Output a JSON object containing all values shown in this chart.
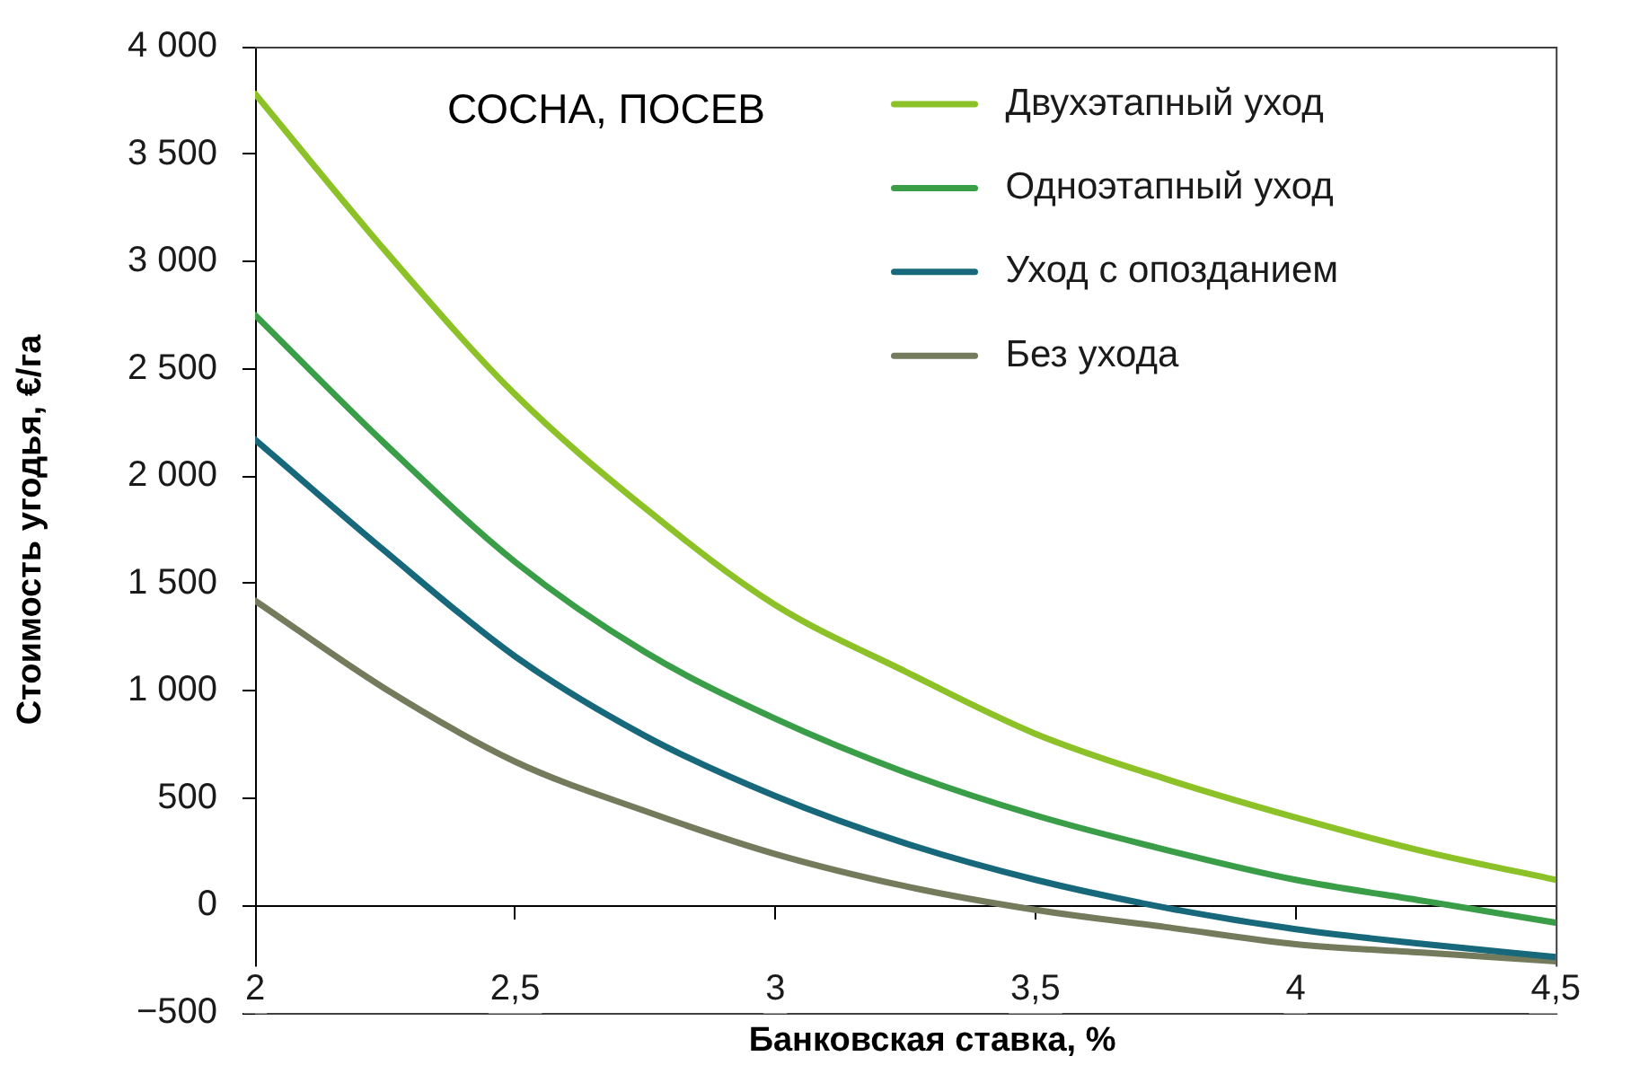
{
  "chart_data": {
    "type": "line",
    "title": "СОСНА, ПОСЕВ",
    "xlabel": "Банковская ставка, %",
    "ylabel": "Стоимость угодья, €/га",
    "x": [
      2,
      2.25,
      2.5,
      2.75,
      3,
      3.25,
      3.5,
      3.75,
      4,
      4.25,
      4.5
    ],
    "series": [
      {
        "name": "Двухэтапный уход",
        "color": "#8cc227",
        "values": [
          3780,
          3050,
          2380,
          1850,
          1400,
          1090,
          800,
          590,
          410,
          250,
          120
        ]
      },
      {
        "name": "Одноэтапный уход",
        "color": "#3a9e48",
        "values": [
          2750,
          2150,
          1600,
          1180,
          870,
          620,
          420,
          260,
          120,
          20,
          -80
        ]
      },
      {
        "name": "Уход с опозданием",
        "color": "#17687a",
        "values": [
          2170,
          1650,
          1160,
          790,
          510,
          290,
          120,
          -10,
          -110,
          -180,
          -240
        ]
      },
      {
        "name": "Без ухода",
        "color": "#737b5c",
        "values": [
          1420,
          1010,
          670,
          440,
          240,
          90,
          -20,
          -100,
          -180,
          -220,
          -260
        ]
      }
    ],
    "xlim": [
      2,
      4.5
    ],
    "xticks": [
      2,
      {
        "value": 2.5,
        "label": "2,5"
      },
      3,
      {
        "value": 3.5,
        "label": "3,5"
      },
      4,
      {
        "value": 4.5,
        "label": "4,5"
      }
    ],
    "ylim": [
      -500,
      4000
    ],
    "yticks": [
      {
        "value": -500,
        "label": "−500"
      },
      0,
      500,
      {
        "value": 1000,
        "label": "1 000"
      },
      {
        "value": 1500,
        "label": "1 500"
      },
      {
        "value": 2000,
        "label": "2 000"
      },
      {
        "value": 2500,
        "label": "2 500"
      },
      {
        "value": 3000,
        "label": "3 000"
      },
      {
        "value": 3500,
        "label": "3 500"
      },
      {
        "value": 4000,
        "label": "4 000"
      }
    ],
    "legend": "top right",
    "marker": "none",
    "line_style": "solid"
  }
}
